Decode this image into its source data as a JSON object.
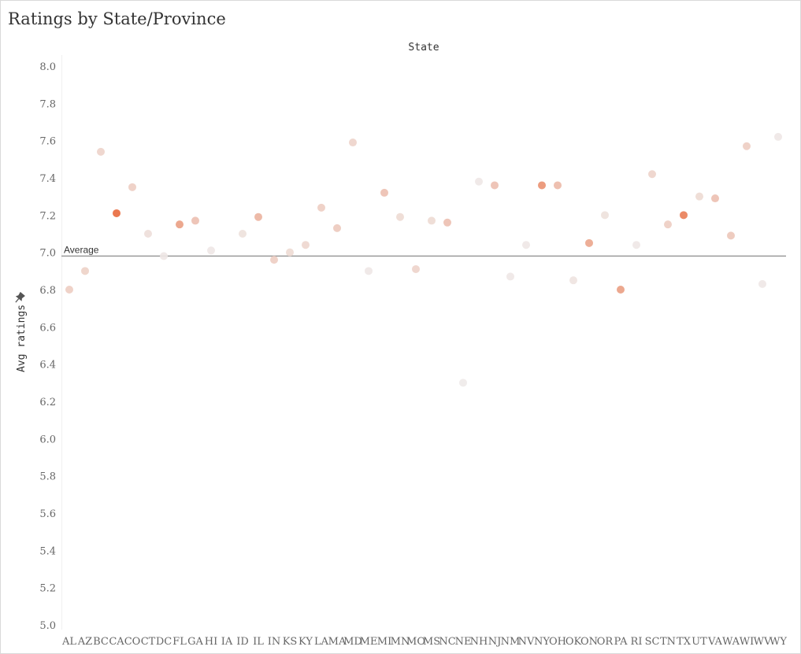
{
  "title": "Ratings by State/Province",
  "colors": {
    "ref_line": "#9a9a9a",
    "low": "#eeeeee",
    "high": "#e8693c"
  },
  "chart_data": {
    "type": "scatter",
    "title": "Ratings by State/Province",
    "xlabel": "State",
    "ylabel": "Avg ratings",
    "ylabel_icon": "pin-icon",
    "ylim": [
      5.0,
      8.0
    ],
    "yticks": [
      "8.0",
      "7.8",
      "7.6",
      "7.4",
      "7.2",
      "7.0",
      "6.8",
      "6.6",
      "6.4",
      "6.2",
      "6.0",
      "5.8",
      "5.6",
      "5.4",
      "5.2",
      "5.0"
    ],
    "reference_line": {
      "label": "Average",
      "value": 6.98
    },
    "categories": [
      "AL",
      "AZ",
      "BC",
      "CA",
      "CO",
      "CT",
      "DC",
      "FL",
      "GA",
      "HI",
      "IA",
      "ID",
      "IL",
      "IN",
      "KS",
      "KY",
      "LA",
      "MA",
      "MD",
      "ME",
      "MI",
      "MN",
      "MO",
      "MS",
      "NC",
      "NE",
      "NH",
      "NJ",
      "NM",
      "NV",
      "NY",
      "OH",
      "OK",
      "ON",
      "OR",
      "PA",
      "RI",
      "SC",
      "TN",
      "TX",
      "UT",
      "VA",
      "WA",
      "WI",
      "WV",
      "WY"
    ],
    "points": [
      {
        "x": "AL",
        "y": 6.8,
        "c": 0.25
      },
      {
        "x": "AZ",
        "y": 6.9,
        "c": 0.22
      },
      {
        "x": "BC",
        "y": 7.54,
        "c": 0.2
      },
      {
        "x": "CA",
        "y": 7.21,
        "c": 1.0
      },
      {
        "x": "CO",
        "y": 7.35,
        "c": 0.25
      },
      {
        "x": "CT",
        "y": 7.1,
        "c": 0.12
      },
      {
        "x": "DC",
        "y": 6.98,
        "c": 0.05
      },
      {
        "x": "FL",
        "y": 7.15,
        "c": 0.6
      },
      {
        "x": "GA",
        "y": 7.17,
        "c": 0.35
      },
      {
        "x": "HI",
        "y": 7.01,
        "c": 0.05
      },
      {
        "x": "ID",
        "y": 7.1,
        "c": 0.1
      },
      {
        "x": "IL",
        "y": 7.19,
        "c": 0.45
      },
      {
        "x": "IN",
        "y": 6.96,
        "c": 0.25
      },
      {
        "x": "KS",
        "y": 7.0,
        "c": 0.15
      },
      {
        "x": "KY",
        "y": 7.04,
        "c": 0.18
      },
      {
        "x": "LA",
        "y": 7.24,
        "c": 0.25
      },
      {
        "x": "MA",
        "y": 7.13,
        "c": 0.28
      },
      {
        "x": "MD",
        "y": 7.59,
        "c": 0.2
      },
      {
        "x": "ME",
        "y": 6.9,
        "c": 0.05
      },
      {
        "x": "MI",
        "y": 7.32,
        "c": 0.35
      },
      {
        "x": "MN",
        "y": 7.19,
        "c": 0.15
      },
      {
        "x": "MO",
        "y": 6.91,
        "c": 0.2
      },
      {
        "x": "MS",
        "y": 7.17,
        "c": 0.15
      },
      {
        "x": "NC",
        "y": 7.16,
        "c": 0.35
      },
      {
        "x": "NE",
        "y": 6.3,
        "c": 0.03
      },
      {
        "x": "NH",
        "y": 7.38,
        "c": 0.05
      },
      {
        "x": "NJ",
        "y": 7.36,
        "c": 0.35
      },
      {
        "x": "NM",
        "y": 6.87,
        "c": 0.05
      },
      {
        "x": "NV",
        "y": 7.04,
        "c": 0.05
      },
      {
        "x": "NY",
        "y": 7.36,
        "c": 0.7
      },
      {
        "x": "OH",
        "y": 7.36,
        "c": 0.4
      },
      {
        "x": "OK",
        "y": 6.85,
        "c": 0.08
      },
      {
        "x": "ON",
        "y": 7.05,
        "c": 0.55
      },
      {
        "x": "OR",
        "y": 7.2,
        "c": 0.1
      },
      {
        "x": "PA",
        "y": 6.8,
        "c": 0.6
      },
      {
        "x": "RI",
        "y": 7.04,
        "c": 0.05
      },
      {
        "x": "SC",
        "y": 7.42,
        "c": 0.2
      },
      {
        "x": "TN",
        "y": 7.15,
        "c": 0.25
      },
      {
        "x": "TX",
        "y": 7.2,
        "c": 0.85
      },
      {
        "x": "UT",
        "y": 7.3,
        "c": 0.15
      },
      {
        "x": "VA",
        "y": 7.29,
        "c": 0.35
      },
      {
        "x": "WA",
        "y": 7.09,
        "c": 0.3
      },
      {
        "x": "WI",
        "y": 7.57,
        "c": 0.25
      },
      {
        "x": "WV",
        "y": 6.83,
        "c": 0.05
      },
      {
        "x": "WY",
        "y": 7.62,
        "c": 0.05
      }
    ]
  }
}
